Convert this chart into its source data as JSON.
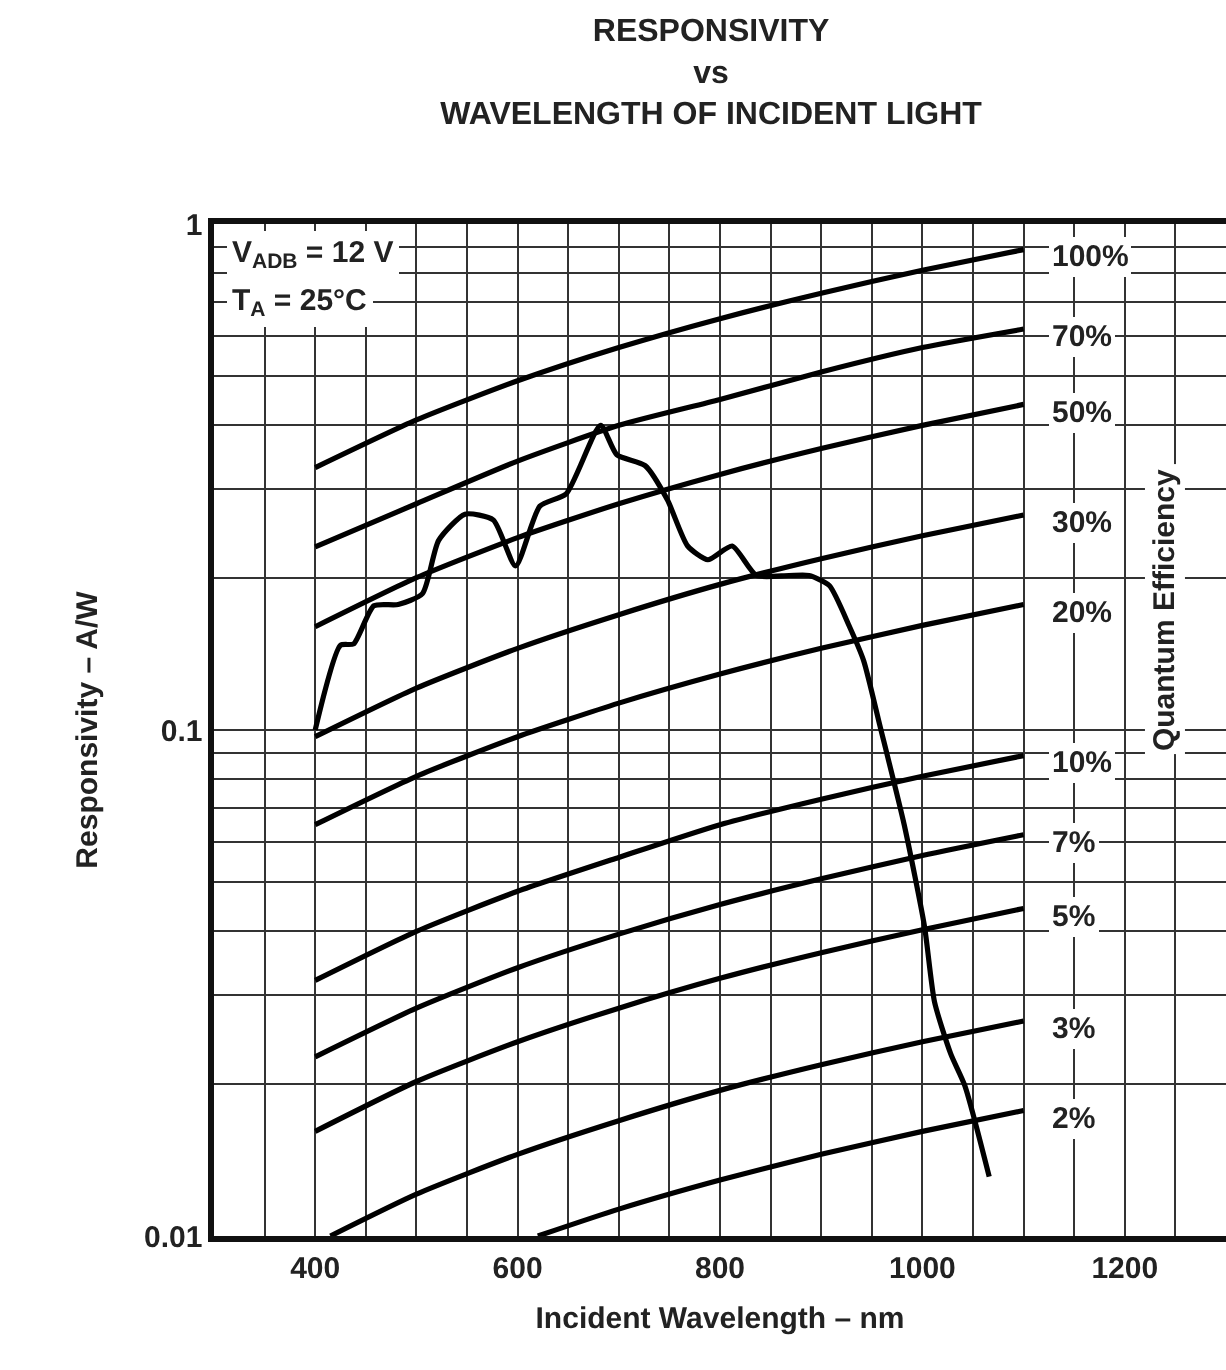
{
  "chart_data": {
    "type": "line",
    "title": "RESPONSIVITY\nvs\nWAVELENGTH OF INCIDENT LIGHT",
    "xlabel": "Incident Wavelength – nm",
    "ylabel": "Responsivity – A/W",
    "y2label": "Quantum Efficiency",
    "annotations": [
      "V$_{ADB}$ = 12 V",
      "T$_{A}$ = 25°C"
    ],
    "log": "y",
    "grid": true,
    "legend": false,
    "marker": "none",
    "line_style": "solid",
    "xlim": [
      300,
      1300
    ],
    "xticks": [
      {
        "value": 300,
        "label": null
      },
      {
        "value": 350,
        "label": null
      },
      400,
      {
        "value": 450,
        "label": null
      },
      {
        "value": 500,
        "label": null
      },
      {
        "value": 550,
        "label": null
      },
      600,
      {
        "value": 650,
        "label": null
      },
      {
        "value": 700,
        "label": null
      },
      {
        "value": 750,
        "label": null
      },
      800,
      {
        "value": 850,
        "label": null
      },
      {
        "value": 900,
        "label": null
      },
      {
        "value": 950,
        "label": null
      },
      1000,
      {
        "value": 1050,
        "label": null
      },
      {
        "value": 1100,
        "label": null
      },
      {
        "value": 1150,
        "label": null
      },
      1200,
      {
        "value": 1250,
        "label": null
      }
    ],
    "ylim": [
      0.01,
      1
    ],
    "yticks": [
      0.01,
      {
        "value": 0.02,
        "label": null
      },
      {
        "value": 0.03,
        "label": null
      },
      {
        "value": 0.04,
        "label": null
      },
      {
        "value": 0.05,
        "label": null
      },
      {
        "value": 0.06,
        "label": null
      },
      {
        "value": 0.07,
        "label": null
      },
      {
        "value": 0.08,
        "label": null
      },
      {
        "value": 0.09,
        "label": null
      },
      0.1,
      {
        "value": 0.2,
        "label": null
      },
      {
        "value": 0.3,
        "label": null
      },
      {
        "value": 0.4,
        "label": null
      },
      {
        "value": 0.5,
        "label": null
      },
      {
        "value": 0.6,
        "label": null
      },
      {
        "value": 0.7,
        "label": null
      },
      {
        "value": 0.8,
        "label": null
      },
      {
        "value": 0.9,
        "label": null
      },
      1
    ],
    "series": [
      {
        "color": "#000000",
        "x": [
          400,
          425,
          438,
          458,
          482,
          506,
          522,
          548,
          576,
          598,
          622,
          648,
          682,
          698,
          726,
          748,
          768,
          788,
          812,
          836,
          868,
          888,
          908,
          928,
          942,
          958,
          982,
          1002,
          1012,
          1028,
          1042,
          1066
        ],
        "values": [
          0.1,
          0.147,
          0.148,
          0.176,
          0.177,
          0.186,
          0.237,
          0.267,
          0.26,
          0.211,
          0.277,
          0.293,
          0.4,
          0.35,
          0.333,
          0.285,
          0.231,
          0.217,
          0.231,
          0.202,
          0.202,
          0.202,
          0.193,
          0.16,
          0.137,
          0.102,
          0.065,
          0.041,
          0.029,
          0.0229,
          0.0198,
          0.0131
        ]
      },
      {
        "name": "100%",
        "color": "#000000",
        "x": [
          400,
          500,
          600,
          700,
          800,
          900,
          1000,
          1100
        ],
        "values": [
          0.33,
          0.41,
          0.49,
          0.57,
          0.65,
          0.73,
          0.81,
          0.89
        ]
      },
      {
        "name": "70%",
        "color": "#000000",
        "x": [
          400,
          500,
          600,
          700,
          800,
          900,
          1000,
          1100
        ],
        "values": [
          0.23,
          0.28,
          0.34,
          0.4,
          0.45,
          0.51,
          0.57,
          0.62
        ]
      },
      {
        "name": "50%",
        "color": "#000000",
        "x": [
          400,
          500,
          600,
          700,
          800,
          900,
          1000,
          1100
        ],
        "values": [
          0.16,
          0.2,
          0.24,
          0.28,
          0.32,
          0.36,
          0.4,
          0.44
        ]
      },
      {
        "name": "30%",
        "color": "#000000",
        "x": [
          400,
          500,
          600,
          700,
          800,
          900,
          1000,
          1100
        ],
        "values": [
          0.097,
          0.121,
          0.145,
          0.169,
          0.194,
          0.218,
          0.242,
          0.266
        ]
      },
      {
        "name": "20%",
        "color": "#000000",
        "x": [
          400,
          500,
          600,
          700,
          800,
          900,
          1000,
          1100
        ],
        "values": [
          0.065,
          0.081,
          0.097,
          0.113,
          0.129,
          0.145,
          0.161,
          0.177
        ]
      },
      {
        "name": "10%",
        "color": "#000000",
        "x": [
          400,
          500,
          600,
          700,
          800,
          900,
          1000,
          1100
        ],
        "values": [
          0.032,
          0.04,
          0.048,
          0.056,
          0.065,
          0.073,
          0.081,
          0.089
        ]
      },
      {
        "name": "7%",
        "color": "#000000",
        "x": [
          400,
          500,
          600,
          700,
          800,
          900,
          1000,
          1100
        ],
        "values": [
          0.0226,
          0.0282,
          0.0339,
          0.0395,
          0.0452,
          0.0508,
          0.0565,
          0.0621
        ]
      },
      {
        "name": "5%",
        "color": "#000000",
        "x": [
          400,
          500,
          600,
          700,
          800,
          900,
          1000,
          1100
        ],
        "values": [
          0.0161,
          0.0202,
          0.0242,
          0.0282,
          0.0323,
          0.0363,
          0.0403,
          0.0444
        ]
      },
      {
        "name": "3%",
        "color": "#000000",
        "x": [
          415,
          500,
          600,
          700,
          800,
          900,
          1000,
          1100
        ],
        "values": [
          0.01,
          0.0121,
          0.0145,
          0.0169,
          0.0194,
          0.0218,
          0.0242,
          0.0266
        ]
      },
      {
        "name": "2%",
        "color": "#000000",
        "x": [
          620,
          700,
          800,
          900,
          1000,
          1100
        ],
        "values": [
          0.01,
          0.0113,
          0.0129,
          0.0145,
          0.0161,
          0.0177
        ]
      }
    ]
  }
}
